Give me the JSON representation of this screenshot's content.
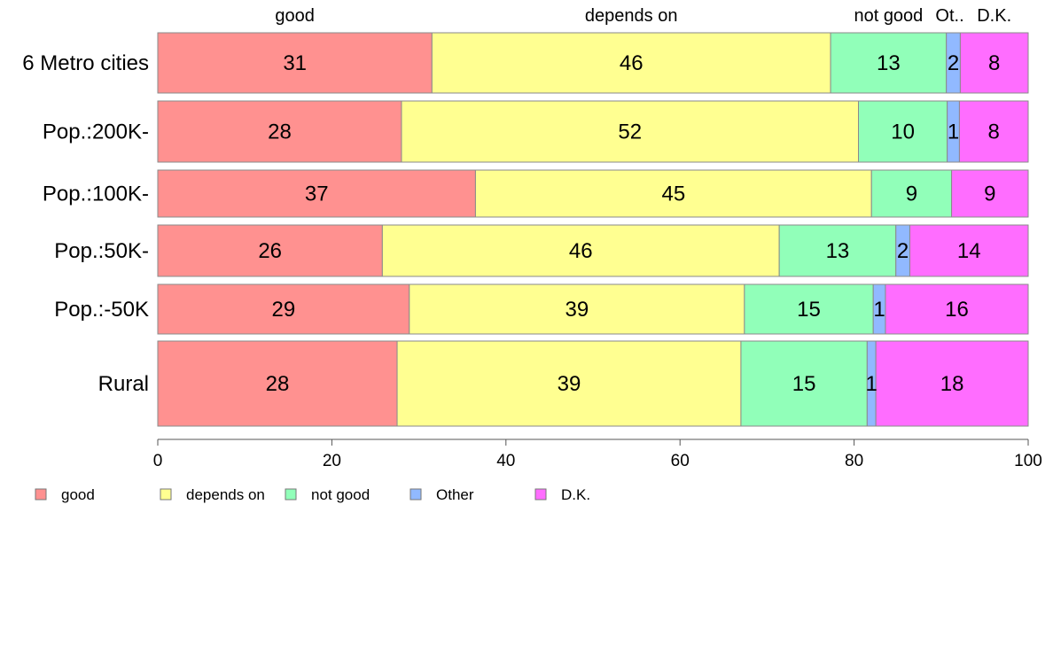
{
  "chart_data": {
    "type": "bar",
    "orientation": "horizontal",
    "stacked": true,
    "categories": [
      "6 Metro cities",
      "Pop.:200K-",
      "Pop.:100K-",
      "Pop.:50K-",
      "Pop.:-50K",
      "Rural"
    ],
    "series": [
      {
        "name": "good",
        "values": [
          31.5,
          28.0,
          36.5,
          25.8,
          28.9,
          27.5
        ],
        "labels": [
          "31",
          "28",
          "37",
          "26",
          "29",
          "28"
        ],
        "color": "#ff9190"
      },
      {
        "name": "depends on",
        "values": [
          45.8,
          52.5,
          45.5,
          45.6,
          38.5,
          39.5
        ],
        "labels": [
          "46",
          "52",
          "45",
          "46",
          "39",
          "39"
        ],
        "color": "#ffff91"
      },
      {
        "name": "not good",
        "values": [
          13.3,
          10.2,
          9.2,
          13.4,
          14.8,
          14.5
        ],
        "labels": [
          "13",
          "10",
          "9",
          "13",
          "15",
          "15"
        ],
        "color": "#91ffb9"
      },
      {
        "name": "Other",
        "values": [
          1.6,
          1.4,
          0,
          1.6,
          1.4,
          1.0
        ],
        "labels": [
          "2",
          "1",
          "",
          "2",
          "1",
          "1"
        ],
        "color": "#91b9ff"
      },
      {
        "name": "D.K.",
        "values": [
          7.8,
          7.9,
          8.8,
          13.6,
          16.4,
          17.5
        ],
        "labels": [
          "8",
          "8",
          "9",
          "14",
          "16",
          "18"
        ],
        "color": "#ff6dff"
      }
    ],
    "top_labels": [
      "good",
      "depends on",
      "not good",
      "Ot..",
      "D.K."
    ],
    "xlim": [
      0,
      100
    ],
    "x_ticks": [
      0,
      20,
      40,
      60,
      80,
      100
    ],
    "legend_position": "bottom-left",
    "grid": false
  }
}
